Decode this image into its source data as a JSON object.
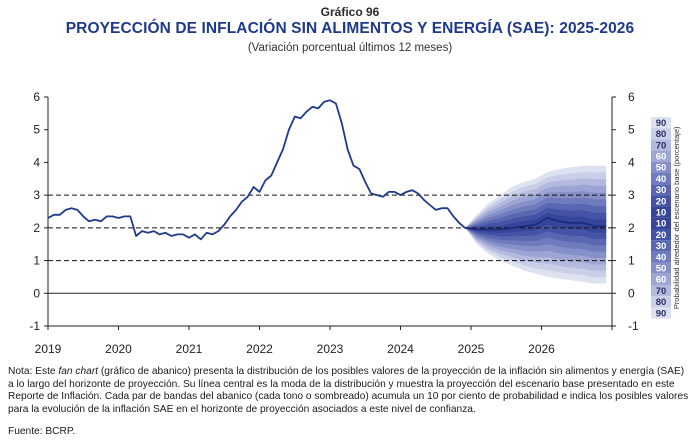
{
  "header": {
    "kicker": "Gráfico 96",
    "title": "PROYECCIÓN DE INFLACIÓN SIN ALIMENTOS Y ENERGÍA (SAE): 2025-2026",
    "subtitle": "(Variación porcentual últimos 12 meses)"
  },
  "note": {
    "prefix": "Nota: Este ",
    "italic": "fan chart",
    "text": " (gráfico de abanico) presenta la distribución de los posibles valores de la proyección de la inflación sin alimentos y energía (SAE) a lo largo del horizonte de proyección. Su línea central es la moda de la distribución y muestra la proyección del escenario base presentado en este Reporte de Inflación. Cada par de bandas del abanico (cada tono o sombreado) acumula un 10 por ciento de probabilidad e indica los posibles valores para la evolución de la inflación SAE en el horizonte de proyección asociados a este nivel de confianza."
  },
  "source": "Fuente: BCRP.",
  "chart_data": {
    "type": "line",
    "ylim": [
      -1,
      6
    ],
    "yticks": [
      "-1",
      "0",
      "1",
      "2",
      "3",
      "4",
      "5",
      "6"
    ],
    "xticks": [
      "2019",
      "2020",
      "2021",
      "2022",
      "2023",
      "2024",
      "2025",
      "2026"
    ],
    "dashed_lines": [
      1,
      2,
      3
    ],
    "side_label": "Probabilidad alrededor del escenario base (porcentaje)",
    "probability_levels": [
      "90",
      "80",
      "70",
      "60",
      "50",
      "40",
      "30",
      "20",
      "10",
      "10",
      "20",
      "30",
      "40",
      "50",
      "60",
      "70",
      "80",
      "90"
    ],
    "band_colors": [
      "#dde1f0",
      "#c9cfe8",
      "#b3bade",
      "#9ca5d3",
      "#8690c8",
      "#6f7bbd",
      "#5966b1",
      "#4553a5",
      "#36449a"
    ],
    "line_color": "#1f3a8a",
    "series": [
      {
        "kind": "observed",
        "x": [
          2019.0,
          2019.083,
          2019.167,
          2019.25,
          2019.333,
          2019.417,
          2019.5,
          2019.583,
          2019.667,
          2019.75,
          2019.833,
          2019.917,
          2020.0,
          2020.083,
          2020.167,
          2020.25,
          2020.333,
          2020.417,
          2020.5,
          2020.583,
          2020.667,
          2020.75,
          2020.833,
          2020.917,
          2021.0,
          2021.083,
          2021.167,
          2021.25,
          2021.333,
          2021.417,
          2021.5,
          2021.583,
          2021.667,
          2021.75,
          2021.833,
          2021.917,
          2022.0,
          2022.083,
          2022.167,
          2022.25,
          2022.333,
          2022.417,
          2022.5,
          2022.583,
          2022.667,
          2022.75,
          2022.833,
          2022.917,
          2023.0,
          2023.083,
          2023.167,
          2023.25,
          2023.333,
          2023.417,
          2023.5,
          2023.583,
          2023.667,
          2023.75,
          2023.833,
          2023.917,
          2024.0,
          2024.083,
          2024.167,
          2024.25,
          2024.333,
          2024.417,
          2024.5,
          2024.583,
          2024.667,
          2024.75,
          2024.833,
          2024.917
        ],
        "y": [
          2.3,
          2.4,
          2.4,
          2.55,
          2.6,
          2.55,
          2.35,
          2.2,
          2.25,
          2.2,
          2.35,
          2.35,
          2.3,
          2.35,
          2.35,
          1.75,
          1.9,
          1.85,
          1.9,
          1.8,
          1.85,
          1.75,
          1.8,
          1.8,
          1.7,
          1.8,
          1.65,
          1.85,
          1.8,
          1.9,
          2.1,
          2.35,
          2.55,
          2.8,
          2.95,
          3.25,
          3.1,
          3.45,
          3.6,
          4.0,
          4.4,
          5.0,
          5.4,
          5.35,
          5.55,
          5.7,
          5.65,
          5.85,
          5.9,
          5.8,
          5.2,
          4.4,
          3.9,
          3.8,
          3.4,
          3.05,
          3.0,
          2.95,
          3.1,
          3.1,
          3.0,
          3.1,
          3.15,
          3.05,
          2.85,
          2.7,
          2.55,
          2.6,
          2.6,
          2.35,
          2.15,
          2.0
        ]
      },
      {
        "kind": "projection",
        "x": [
          2024.917,
          2025.083,
          2025.25,
          2025.417,
          2025.583,
          2025.75,
          2025.917,
          2026.083,
          2026.25,
          2026.417,
          2026.583,
          2026.75,
          2026.917
        ],
        "y": [
          2.0,
          1.95,
          1.95,
          1.95,
          2.0,
          2.05,
          2.1,
          2.3,
          2.2,
          2.15,
          2.15,
          2.05,
          2.05
        ],
        "upper90": [
          2.0,
          2.4,
          2.75,
          3.0,
          3.25,
          3.4,
          3.5,
          3.7,
          3.8,
          3.85,
          3.9,
          3.9,
          3.9
        ],
        "lower90": [
          2.0,
          1.5,
          1.2,
          1.0,
          0.85,
          0.7,
          0.6,
          0.5,
          0.45,
          0.4,
          0.35,
          0.3,
          0.3
        ]
      }
    ]
  }
}
